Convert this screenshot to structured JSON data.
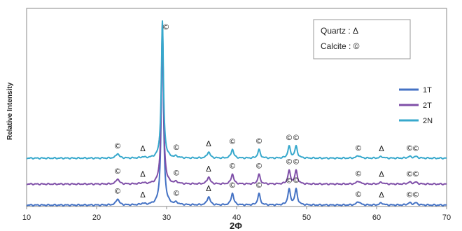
{
  "chart_data": {
    "type": "line",
    "xlabel": "2Φ",
    "ylabel": "Relative Intensity",
    "xlim": [
      10,
      70
    ],
    "x_ticks": [
      "10",
      "20",
      "30",
      "40",
      "50",
      "60",
      "70"
    ],
    "grid": false,
    "legend_position": "right",
    "phase_key": [
      "Quartz : Δ",
      "Calcite : ©"
    ],
    "series": [
      {
        "name": "1T",
        "color": "#4472c4",
        "baseline": 0,
        "scale": 1.0
      },
      {
        "name": "2T",
        "color": "#7f4fa8",
        "baseline": 30,
        "scale": 0.85
      },
      {
        "name": "2N",
        "color": "#37a8cc",
        "baseline": 67,
        "scale": 0.75
      }
    ],
    "peaks": [
      {
        "x": 23.0,
        "h": 9,
        "w": 0.25,
        "symbol": "©"
      },
      {
        "x": 26.6,
        "h": 2,
        "w": 0.25,
        "symbol": "Δ"
      },
      {
        "x": 29.4,
        "h": 260,
        "w": 0.18,
        "symbol": "©"
      },
      {
        "x": 31.4,
        "h": 3,
        "w": 0.25,
        "symbol": "©"
      },
      {
        "x": 36.0,
        "h": 12,
        "w": 0.25,
        "symbol": "Δ"
      },
      {
        "x": 39.4,
        "h": 17,
        "w": 0.22,
        "symbol": "©"
      },
      {
        "x": 43.2,
        "h": 16,
        "w": 0.22,
        "symbol": "©"
      },
      {
        "x": 47.5,
        "h": 22,
        "w": 0.22,
        "symbol": "©"
      },
      {
        "x": 48.5,
        "h": 22,
        "w": 0.22,
        "symbol": "©"
      },
      {
        "x": 57.4,
        "h": 5,
        "w": 0.3,
        "symbol": "©"
      },
      {
        "x": 60.7,
        "h": 3,
        "w": 0.3,
        "symbol": "Δ"
      },
      {
        "x": 64.7,
        "h": 3,
        "w": 0.3,
        "symbol": "©"
      },
      {
        "x": 65.6,
        "h": 3,
        "w": 0.3,
        "symbol": "©"
      }
    ],
    "top_annotation": "©"
  }
}
